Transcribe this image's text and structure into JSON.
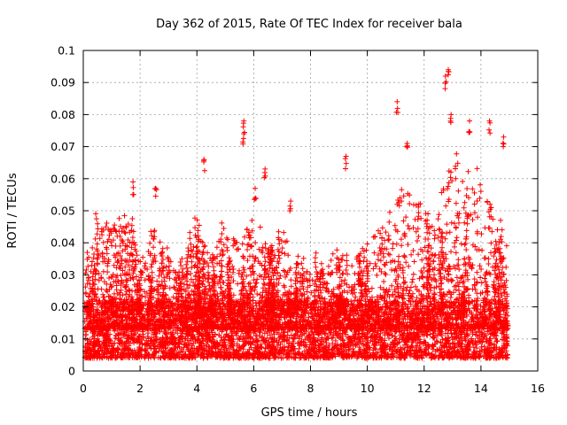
{
  "chart_data": {
    "type": "scatter",
    "title": "Day 362 of 2015, Rate Of TEC Index for receiver bala",
    "xlabel": "GPS time / hours",
    "ylabel": "ROTI / TECUs",
    "xlim": [
      0,
      16
    ],
    "ylim": [
      0,
      0.1
    ],
    "xticks": [
      0,
      2,
      4,
      6,
      8,
      10,
      12,
      14,
      16
    ],
    "yticks": [
      0,
      0.01,
      0.02,
      0.03,
      0.04,
      0.05,
      0.06,
      0.07,
      0.08,
      0.09,
      0.1
    ],
    "xtick_labels": [
      "0",
      "2",
      "4",
      "6",
      "8",
      "10",
      "12",
      "14",
      "16"
    ],
    "ytick_labels": [
      "0",
      "0.01",
      "0.02",
      "0.03",
      "0.04",
      "0.05",
      "0.06",
      "0.07",
      "0.08",
      "0.09",
      "0.1"
    ],
    "grid": true,
    "marker": "+",
    "series_color": "#ff0000",
    "x_data_range": [
      0.05,
      14.95
    ],
    "notable_points": [
      {
        "x": 5.65,
        "y": 0.078
      },
      {
        "x": 5.65,
        "y": 0.074
      },
      {
        "x": 6.4,
        "y": 0.063
      },
      {
        "x": 9.25,
        "y": 0.067
      },
      {
        "x": 11.05,
        "y": 0.084
      },
      {
        "x": 11.4,
        "y": 0.071
      },
      {
        "x": 12.75,
        "y": 0.092
      },
      {
        "x": 12.85,
        "y": 0.094
      },
      {
        "x": 12.95,
        "y": 0.08
      },
      {
        "x": 13.6,
        "y": 0.078
      },
      {
        "x": 14.3,
        "y": 0.078
      },
      {
        "x": 14.8,
        "y": 0.073
      },
      {
        "x": 4.25,
        "y": 0.066
      },
      {
        "x": 1.75,
        "y": 0.059
      },
      {
        "x": 2.55,
        "y": 0.057
      },
      {
        "x": 7.3,
        "y": 0.053
      },
      {
        "x": 6.05,
        "y": 0.057
      }
    ],
    "envelope": {
      "hours": [
        0,
        0.5,
        1,
        1.5,
        2,
        2.5,
        3,
        3.5,
        4,
        4.5,
        5,
        5.5,
        6,
        6.5,
        7,
        7.5,
        8,
        8.5,
        9,
        9.5,
        10,
        10.5,
        11,
        11.5,
        12,
        12.5,
        13,
        13.5,
        14,
        14.5,
        15
      ],
      "typical_peak": [
        0.03,
        0.045,
        0.045,
        0.05,
        0.035,
        0.045,
        0.035,
        0.03,
        0.045,
        0.035,
        0.045,
        0.04,
        0.05,
        0.04,
        0.045,
        0.035,
        0.03,
        0.035,
        0.04,
        0.035,
        0.04,
        0.045,
        0.055,
        0.06,
        0.05,
        0.055,
        0.065,
        0.065,
        0.06,
        0.05,
        0.04
      ],
      "baseline_low": 0.004,
      "baseline_high": 0.022
    }
  }
}
